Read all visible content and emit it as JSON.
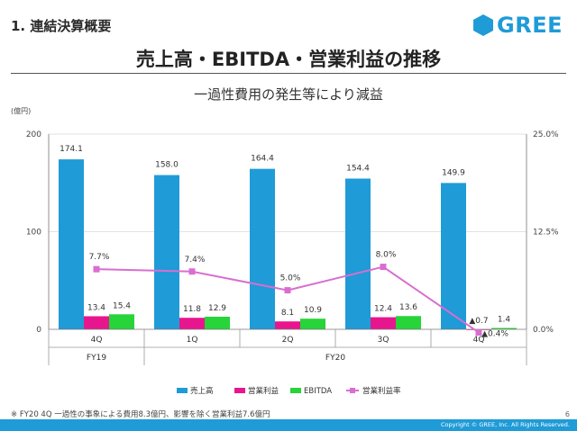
{
  "header": {
    "section": "1. 連結決算概要",
    "brand": "GREE",
    "title": "売上高・EBITDA・営業利益の推移",
    "subtitle": "一過性費用の発生等により減益"
  },
  "footer": {
    "note": "※ FY20 4Q 一過性の事象による費用8.3億円、影響を除く営業利益7.6億円",
    "page": "6",
    "copyright": "Copyright © GREE, Inc. All Rights Reserved."
  },
  "colors": {
    "sales": "#1f9bd7",
    "op": "#e8168e",
    "ebitda": "#27d43a",
    "margin": "#d86ed0"
  },
  "chart_data": {
    "type": "bar",
    "ylabel": "(億円)",
    "ylim": [
      0,
      200
    ],
    "y_ticks": [
      "0",
      "100",
      "200"
    ],
    "y2lim": [
      0,
      25
    ],
    "y2_ticks": [
      "0.0%",
      "12.5%",
      "25.0%"
    ],
    "categories": [
      "4Q",
      "1Q",
      "2Q",
      "3Q",
      "4Q"
    ],
    "groups": [
      {
        "label": "FY19",
        "span": 1
      },
      {
        "label": "FY20",
        "span": 4
      }
    ],
    "series": [
      {
        "name": "売上高",
        "type": "bar",
        "values": [
          174.1,
          158.0,
          164.4,
          154.4,
          149.9
        ],
        "labels": [
          "174.1",
          "158.0",
          "164.4",
          "154.4",
          "149.9"
        ]
      },
      {
        "name": "営業利益",
        "type": "bar",
        "values": [
          13.4,
          11.8,
          8.1,
          12.4,
          -0.7
        ],
        "labels": [
          "13.4",
          "11.8",
          "8.1",
          "12.4",
          "▲0.7"
        ]
      },
      {
        "name": "EBITDA",
        "type": "bar",
        "values": [
          15.4,
          12.9,
          10.9,
          13.6,
          1.4
        ],
        "labels": [
          "15.4",
          "12.9",
          "10.9",
          "13.6",
          "1.4"
        ]
      },
      {
        "name": "営業利益率",
        "type": "line",
        "axis": "right",
        "values": [
          7.7,
          7.4,
          5.0,
          8.0,
          -0.4
        ],
        "labels": [
          "7.7%",
          "7.4%",
          "5.0%",
          "8.0%",
          "▲0.4%"
        ]
      }
    ],
    "legend_position": "bottom"
  }
}
